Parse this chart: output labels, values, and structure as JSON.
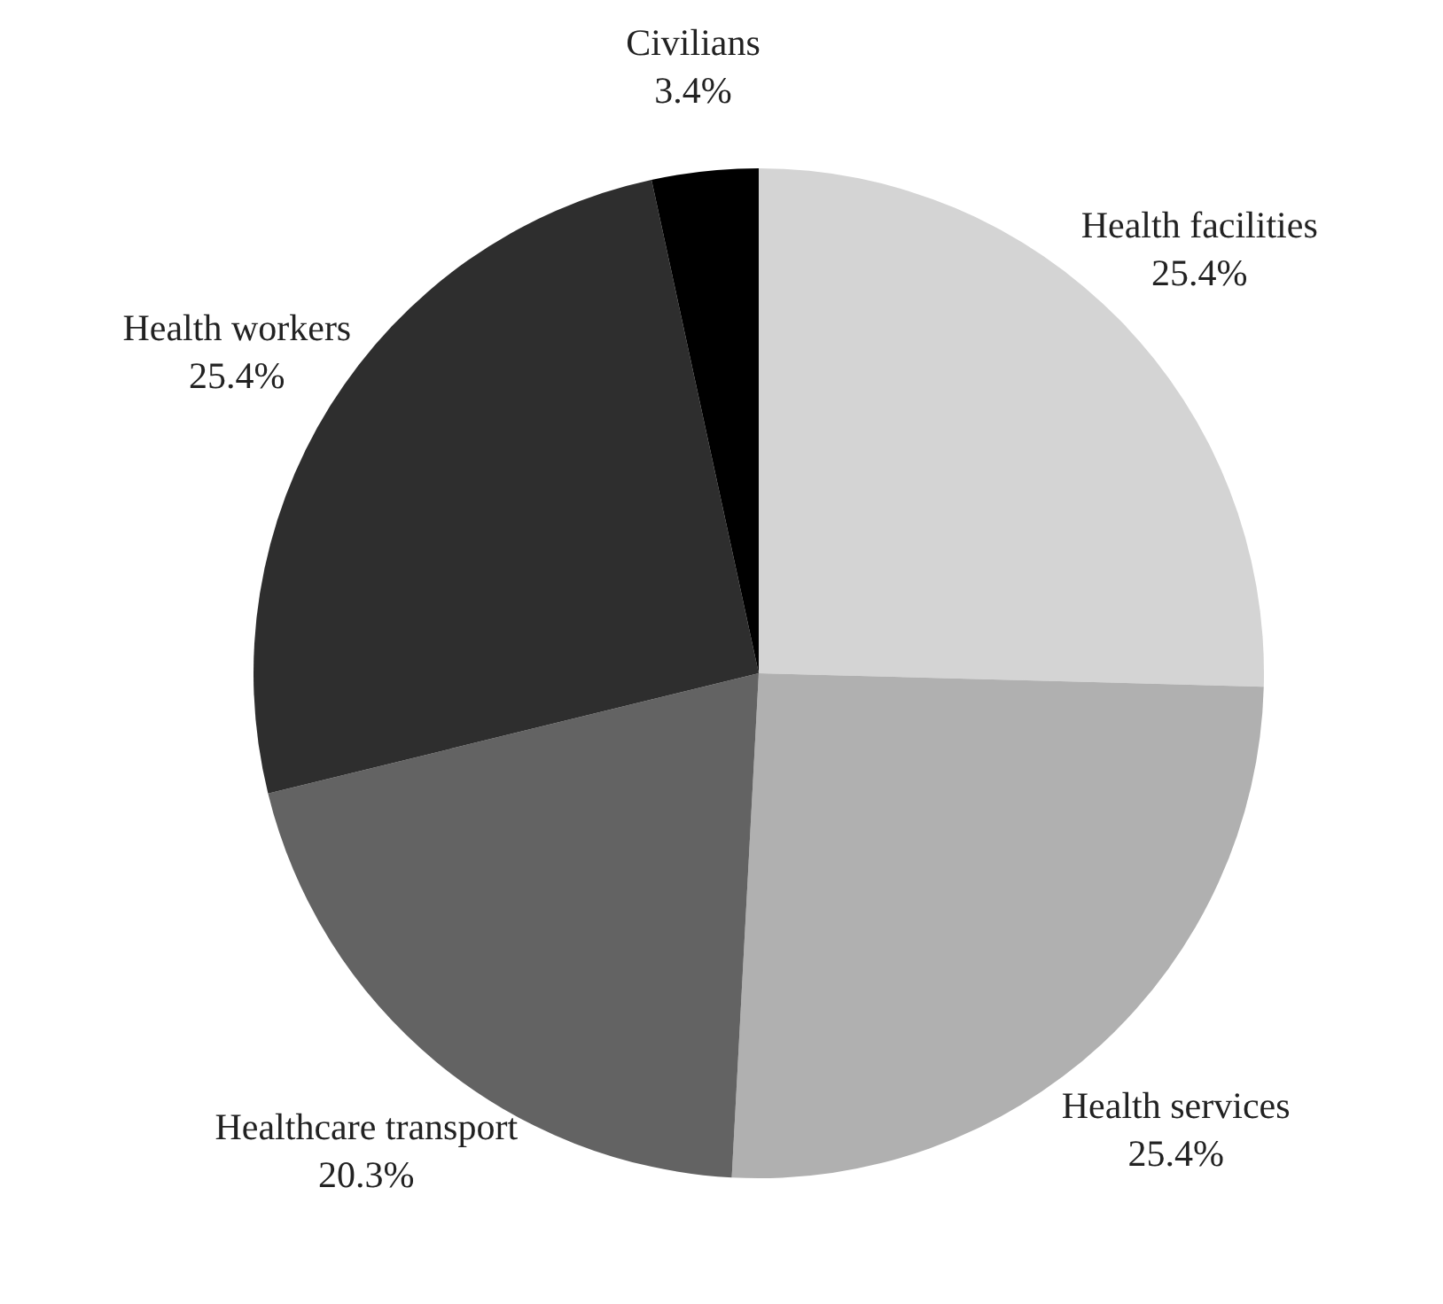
{
  "chart_data": {
    "type": "pie",
    "categories": [
      "Health facilities",
      "Health services",
      "Healthcare transport",
      "Health workers",
      "Civilians"
    ],
    "values": [
      25.4,
      25.4,
      20.3,
      25.4,
      3.4
    ],
    "colors": [
      "#d4d4d4",
      "#b0b0b0",
      "#636363",
      "#2e2e2e",
      "#000000"
    ],
    "value_labels": [
      "25.4%",
      "25.4%",
      "20.3%",
      "25.4%",
      "3.4%"
    ]
  }
}
